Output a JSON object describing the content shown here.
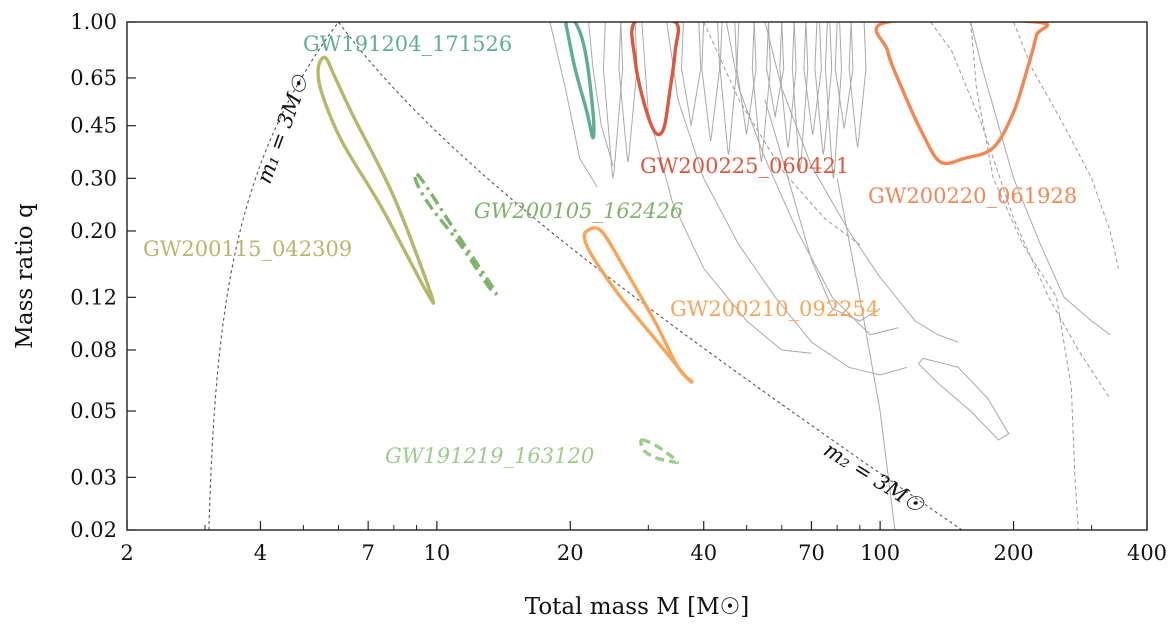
{
  "chart_data": {
    "type": "contour",
    "xlabel": "Total mass M [M☉]",
    "ylabel": "Mass ratio q",
    "x_scale": "log",
    "y_scale": "log",
    "xlim": [
      2,
      400
    ],
    "ylim": [
      0.02,
      1.0
    ],
    "x_ticks": [
      2,
      4,
      7,
      10,
      20,
      40,
      70,
      100,
      200,
      400
    ],
    "y_ticks": [
      0.02,
      0.03,
      0.05,
      0.08,
      0.12,
      0.2,
      0.3,
      0.45,
      0.65,
      1.0
    ],
    "x_tick_labels": [
      "2",
      "4",
      "7",
      "10",
      "20",
      "40",
      "70",
      "100",
      "200",
      "400"
    ],
    "y_tick_labels": [
      "0.02",
      "0.03",
      "0.05",
      "0.08",
      "0.12",
      "0.20",
      "0.30",
      "0.45",
      "0.65",
      "1.00"
    ],
    "grid": false,
    "reference_lines": [
      {
        "label": "m₁ = 3M☉",
        "style": "dashed",
        "color": "#555555"
      },
      {
        "label": "m₂ = 3M☉",
        "style": "dashed",
        "color": "#555555"
      }
    ],
    "events": [
      {
        "name": "GW191204_171526",
        "color": "#5fae92",
        "style": "solid",
        "contour": [
          [
            20.5,
            1.0
          ],
          [
            21.6,
            0.8
          ],
          [
            22.5,
            0.5
          ],
          [
            22.5,
            0.41
          ],
          [
            21.8,
            0.5
          ],
          [
            20.5,
            0.7
          ],
          [
            19.8,
            0.9
          ],
          [
            19.6,
            1.0
          ]
        ]
      },
      {
        "name": "GW200115_042309",
        "color": "#b5b86a",
        "style": "solid",
        "contour": [
          [
            5.6,
            0.76
          ],
          [
            5.9,
            0.65
          ],
          [
            6.5,
            0.48
          ],
          [
            8.0,
            0.26
          ],
          [
            9.7,
            0.123
          ],
          [
            9.4,
            0.128
          ],
          [
            7.5,
            0.24
          ],
          [
            6.1,
            0.4
          ],
          [
            5.5,
            0.58
          ],
          [
            5.4,
            0.7
          ]
        ]
      },
      {
        "name": "GW200105_162426",
        "color": "#7fb26b",
        "style": "dashdot",
        "contour": [
          [
            9.0,
            0.31
          ],
          [
            9.5,
            0.28
          ],
          [
            11.0,
            0.2
          ],
          [
            13.0,
            0.138
          ],
          [
            13.6,
            0.124
          ],
          [
            13.1,
            0.13
          ],
          [
            11.3,
            0.18
          ],
          [
            9.7,
            0.24
          ],
          [
            9.0,
            0.29
          ]
        ]
      },
      {
        "name": "GW191219_163120",
        "color": "#9ccb8b",
        "style": "dashed",
        "contour": [
          [
            29.0,
            0.04
          ],
          [
            31.5,
            0.038
          ],
          [
            34.8,
            0.034
          ],
          [
            33.5,
            0.034
          ],
          [
            31.0,
            0.035
          ],
          [
            29.3,
            0.037
          ]
        ]
      },
      {
        "name": "GW200210_092254",
        "color": "#f6a55a",
        "style": "solid",
        "contour": [
          [
            21.8,
            0.2
          ],
          [
            23.5,
            0.2
          ],
          [
            26.5,
            0.15
          ],
          [
            31.0,
            0.1
          ],
          [
            35.0,
            0.07
          ],
          [
            37.5,
            0.063
          ],
          [
            36.5,
            0.065
          ],
          [
            31.5,
            0.085
          ],
          [
            26.0,
            0.12
          ],
          [
            22.7,
            0.16
          ],
          [
            21.6,
            0.185
          ]
        ]
      },
      {
        "name": "GW200225_060421",
        "color": "#d9583f",
        "style": "solid",
        "contour": [
          [
            28.0,
            1.0
          ],
          [
            28.0,
            0.75
          ],
          [
            29.2,
            0.55
          ],
          [
            31.0,
            0.43
          ],
          [
            32.5,
            0.44
          ],
          [
            33.5,
            0.58
          ],
          [
            34.5,
            0.8
          ],
          [
            34.5,
            1.0
          ]
        ]
      },
      {
        "name": "GW200220_061928",
        "color": "#f08755",
        "style": "solid",
        "contour": [
          [
            104,
            1.0
          ],
          [
            104,
            0.8
          ],
          [
            112,
            0.6
          ],
          [
            125,
            0.42
          ],
          [
            137,
            0.34
          ],
          [
            155,
            0.35
          ],
          [
            180,
            0.38
          ],
          [
            200,
            0.5
          ],
          [
            215,
            0.7
          ],
          [
            225,
            0.9
          ],
          [
            225,
            1.0
          ]
        ]
      }
    ]
  }
}
